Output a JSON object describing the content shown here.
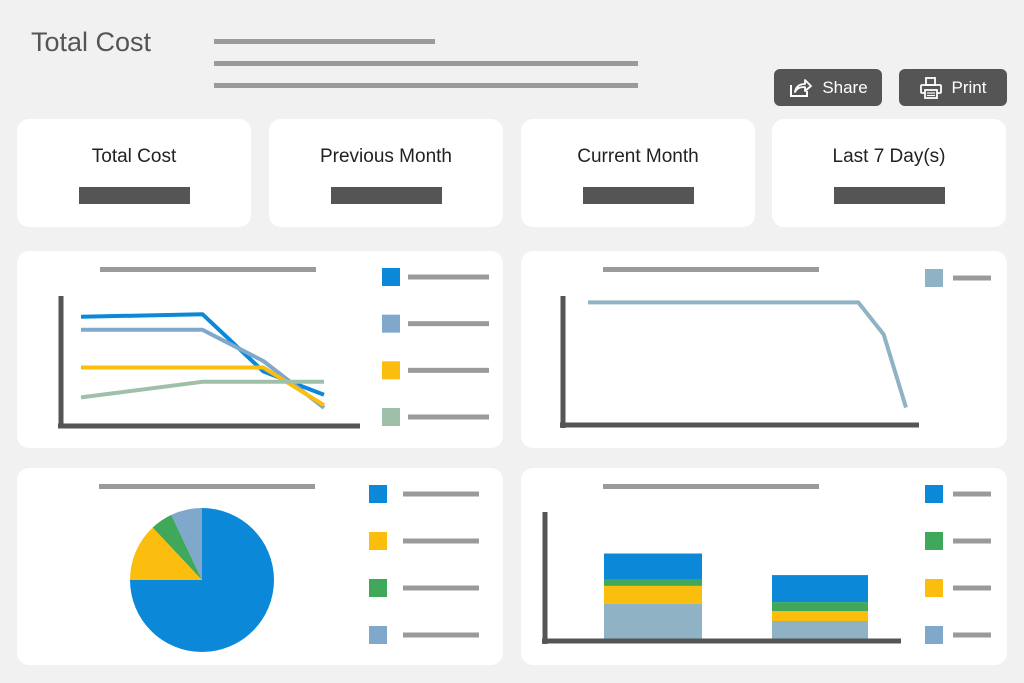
{
  "header": {
    "title": "Total Cost"
  },
  "toolbar": {
    "share_label": "Share",
    "print_label": "Print",
    "share_icon": "share-icon",
    "print_icon": "printer-icon"
  },
  "stats": [
    {
      "label": "Total Cost"
    },
    {
      "label": "Previous Month"
    },
    {
      "label": "Current Month"
    },
    {
      "label": "Last 7 Day(s)"
    }
  ],
  "colors": {
    "blue": "#0b88d8",
    "green": "#3fa85a",
    "yellow": "#fbbd0e",
    "light_blue": "#7fa8cb",
    "teal": "#8fb3c4",
    "sage": "#a0bfa8",
    "dark_gray": "#555555",
    "placeholder_gray": "#9a9a9a"
  },
  "chart_data": [
    {
      "type": "line",
      "series": [
        {
          "color": "#0b88d8",
          "values": [
            0.84,
            0.86,
            0.42,
            0.24
          ]
        },
        {
          "color": "#7fa8cb",
          "values": [
            0.74,
            0.74,
            0.5,
            0.14
          ]
        },
        {
          "color": "#fbbd0e",
          "values": [
            0.45,
            0.45,
            0.45,
            0.16
          ]
        },
        {
          "color": "#a0bfa8",
          "values": [
            0.22,
            0.34,
            0.34,
            0.34
          ]
        }
      ],
      "x": [
        0,
        0.5,
        0.75,
        1
      ]
    },
    {
      "type": "line",
      "series": [
        {
          "color": "#8fb3c4",
          "values": [
            0.84,
            0.84,
            0.62,
            0.12
          ]
        }
      ],
      "x": [
        0,
        0.85,
        0.93,
        1
      ]
    },
    {
      "type": "pie",
      "slices": [
        {
          "color": "#0b88d8",
          "value": 75
        },
        {
          "color": "#fbbd0e",
          "value": 13
        },
        {
          "color": "#3fa85a",
          "value": 5
        },
        {
          "color": "#7fa8cb",
          "value": 7
        }
      ]
    },
    {
      "type": "bar",
      "stacked": true,
      "series": [
        {
          "color": "#8fb3c4",
          "values": [
            0.39,
            0.2
          ]
        },
        {
          "color": "#fbbd0e",
          "values": [
            0.2,
            0.11
          ]
        },
        {
          "color": "#3fa85a",
          "values": [
            0.07,
            0.1
          ]
        },
        {
          "color": "#0b88d8",
          "values": [
            0.29,
            0.3
          ]
        }
      ]
    }
  ]
}
